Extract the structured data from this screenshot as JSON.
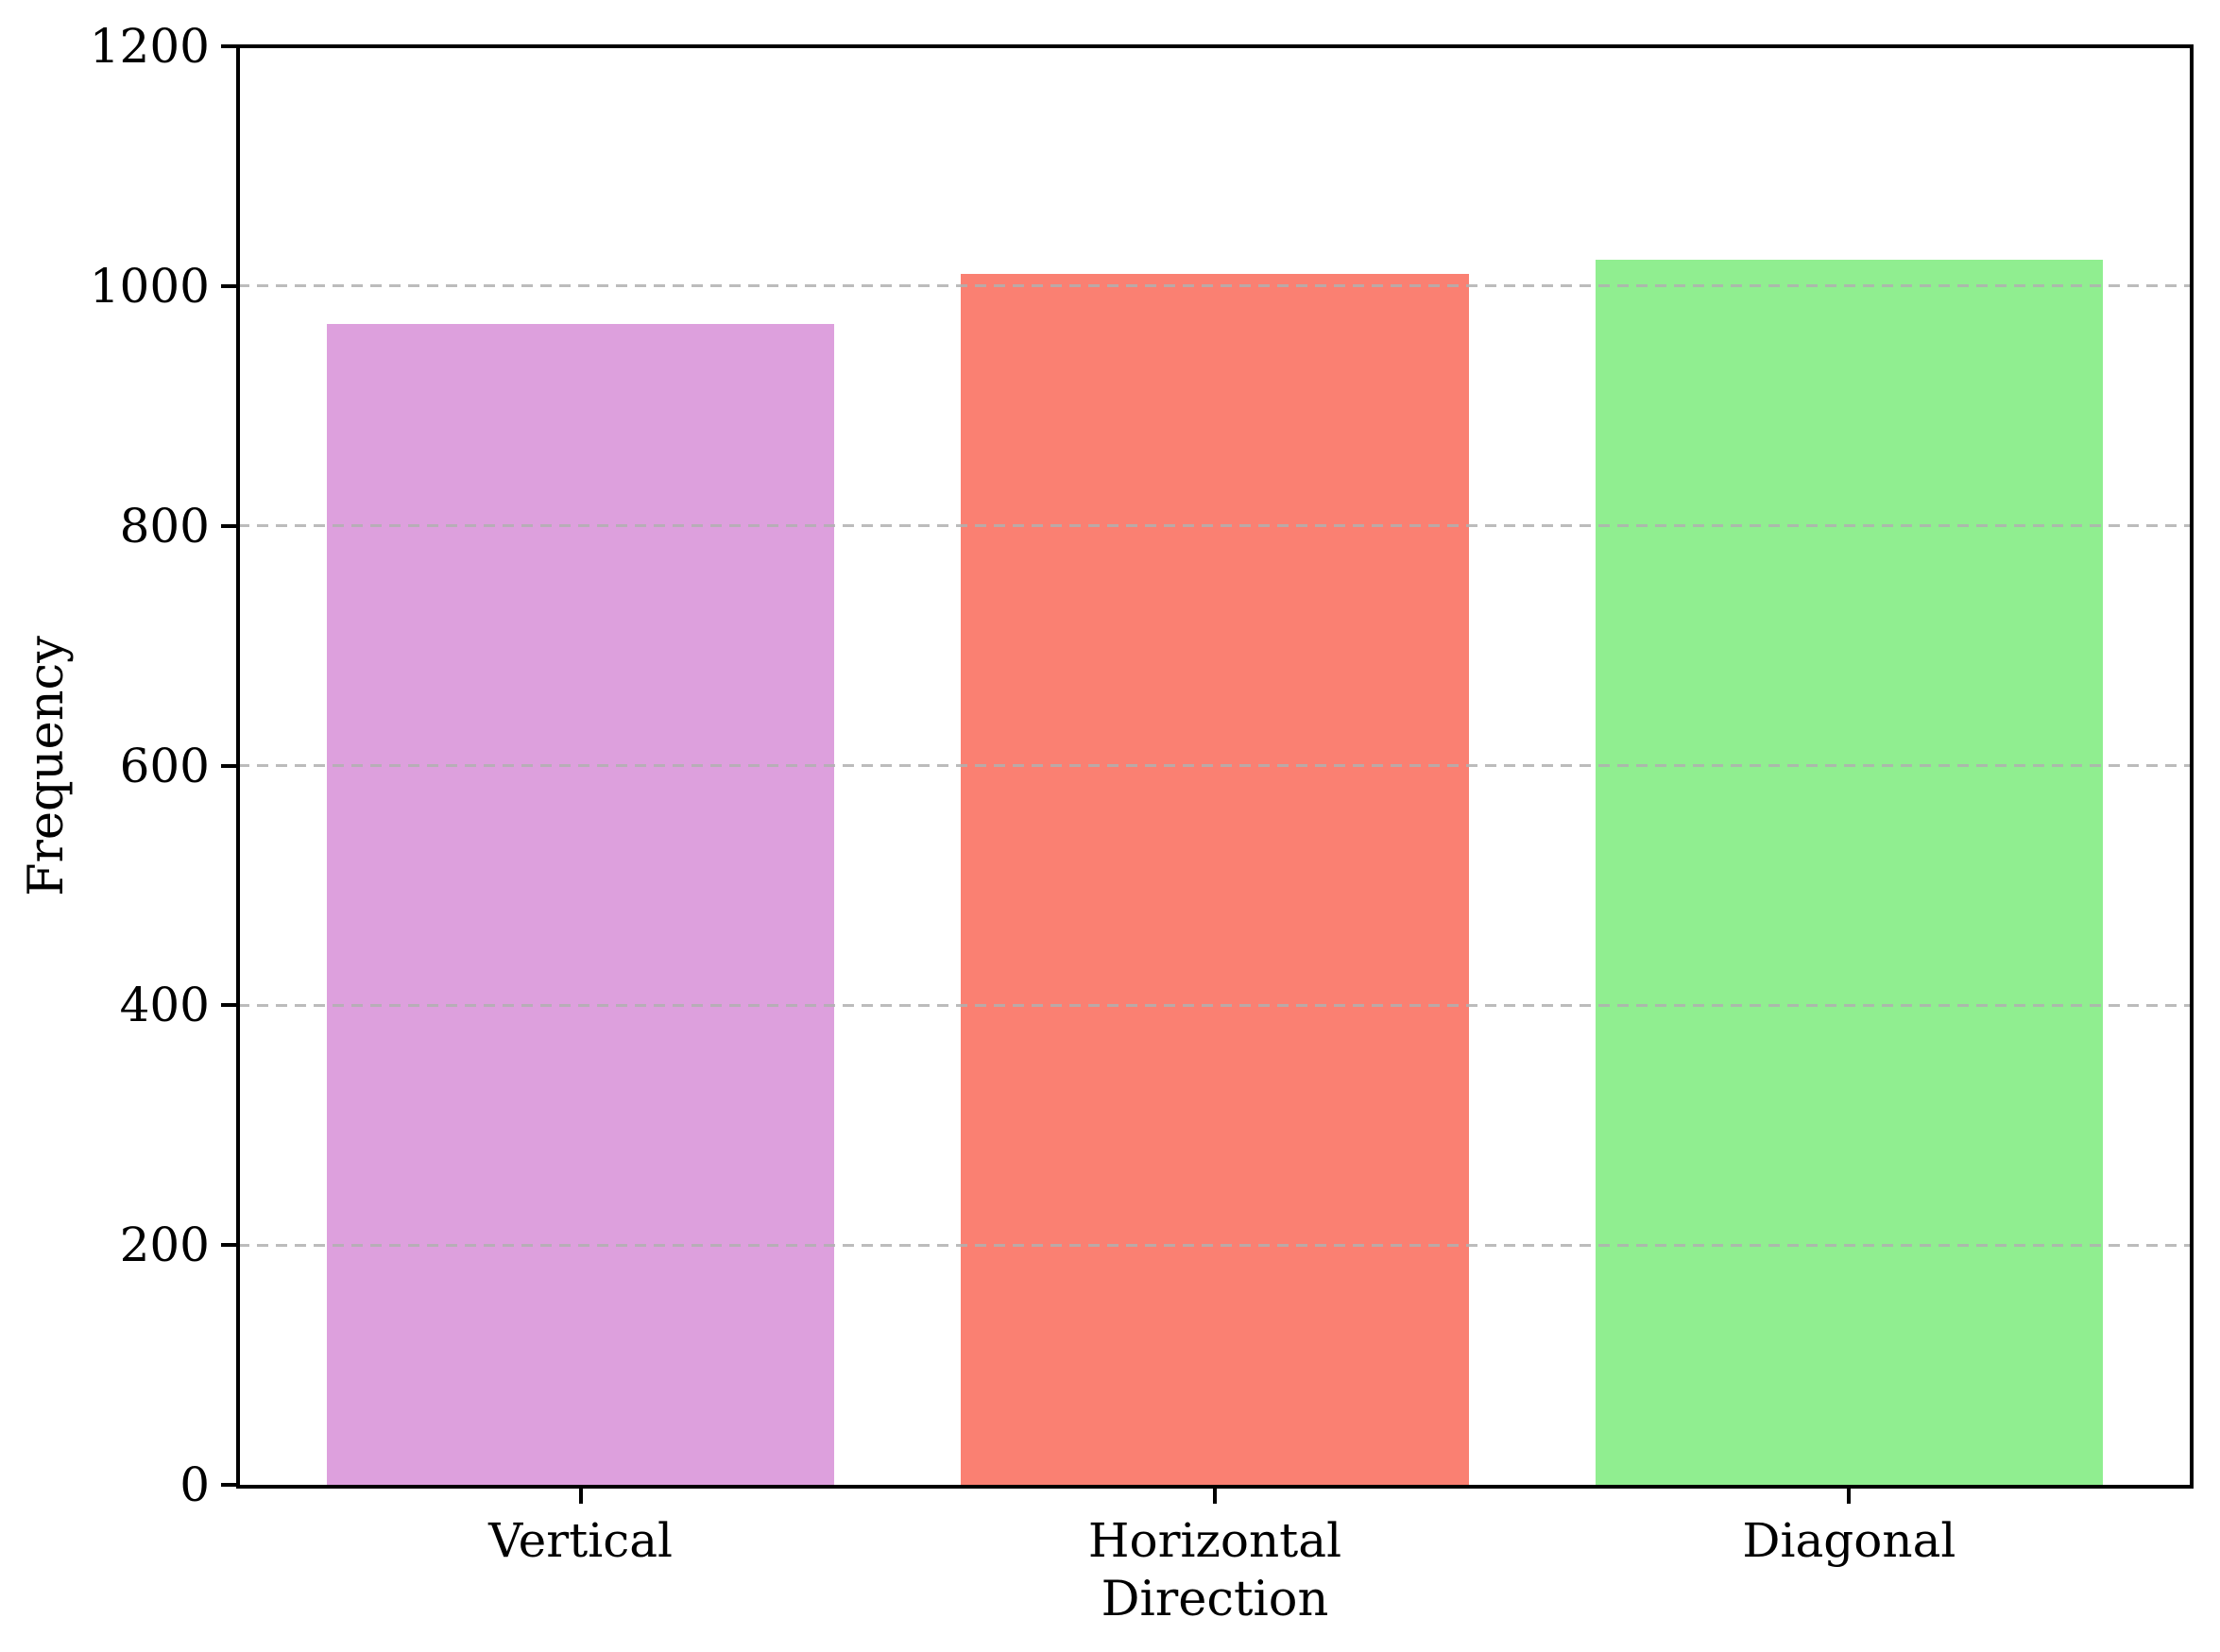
{
  "chart_data": {
    "type": "bar",
    "title": "",
    "xlabel": "Direction",
    "ylabel": "Frequency",
    "categories": [
      "Vertical",
      "Horizontal",
      "Diagonal"
    ],
    "values": [
      968,
      1010,
      1022
    ],
    "bar_colors": [
      "#DDA0DD",
      "#FA8072",
      "#90EE90"
    ],
    "ylim": [
      0,
      1200
    ],
    "yticks": [
      0,
      200,
      400,
      600,
      800,
      1000,
      1200
    ],
    "xlim": [
      -0.54,
      2.54
    ],
    "bar_width": 0.8,
    "grid": {
      "axis": "y",
      "style": "dashed",
      "color": "#b0b0b0",
      "over_bars": true
    },
    "legend": "none",
    "background_color": "#ffffff",
    "spine_color": "#000000",
    "text_color": "#000000"
  }
}
